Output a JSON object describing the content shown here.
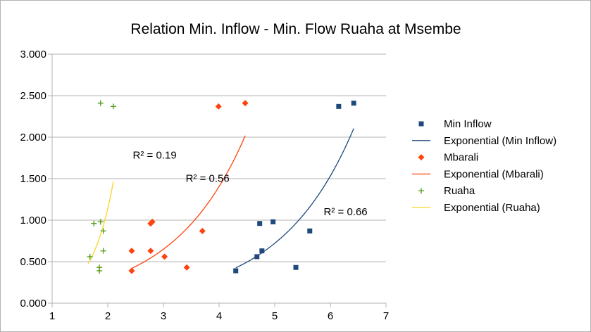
{
  "chart_data": {
    "type": "scatter",
    "title": "Relation Min. Inflow - Min. Flow Ruaha at Msembe",
    "xlabel": "",
    "ylabel": "",
    "xlim": [
      1,
      7
    ],
    "ylim": [
      0,
      3
    ],
    "x_ticks": [
      1,
      2,
      3,
      4,
      5,
      6,
      7
    ],
    "y_ticks": [
      0,
      0.5,
      1,
      1.5,
      2,
      2.5,
      3
    ],
    "x_tick_labels": [
      "1",
      "2",
      "3",
      "4",
      "5",
      "6",
      "7"
    ],
    "y_tick_labels": [
      "0.000",
      "0.500",
      "1.000",
      "1.500",
      "2.000",
      "2.500",
      "3.000"
    ],
    "grid": "horizontal",
    "legend_position": "right",
    "series": [
      {
        "name": "Min Inflow",
        "marker": "square",
        "color": "#1f497d",
        "points": [
          [
            4.3,
            0.39
          ],
          [
            4.68,
            0.56
          ],
          [
            4.77,
            0.63
          ],
          [
            4.73,
            0.96
          ],
          [
            4.97,
            0.98
          ],
          [
            5.38,
            0.43
          ],
          [
            5.63,
            0.87
          ],
          [
            6.15,
            2.37
          ],
          [
            6.42,
            2.41
          ]
        ]
      },
      {
        "name": "Exponential (Min Inflow)",
        "type": "trendline",
        "color": "#1f497d",
        "x_range": [
          4.3,
          6.42
        ],
        "a": 0.0166,
        "b": 0.7543
      },
      {
        "name": "Mbarali",
        "marker": "diamond",
        "color": "#ff420e",
        "points": [
          [
            2.43,
            0.39
          ],
          [
            2.43,
            0.63
          ],
          [
            2.77,
            0.63
          ],
          [
            2.77,
            0.96
          ],
          [
            2.8,
            0.98
          ],
          [
            3.02,
            0.56
          ],
          [
            3.42,
            0.43
          ],
          [
            3.7,
            0.87
          ],
          [
            3.99,
            2.37
          ],
          [
            4.47,
            2.41
          ]
        ]
      },
      {
        "name": "Exponential (Mbarali)",
        "type": "trendline",
        "color": "#ff420e",
        "x_range": [
          2.43,
          4.47
        ],
        "a": 0.0644,
        "b": 0.7706
      },
      {
        "name": "Ruaha",
        "marker": "plus",
        "color": "#579d1c",
        "points": [
          [
            1.68,
            0.56
          ],
          [
            1.85,
            0.39
          ],
          [
            1.85,
            0.43
          ],
          [
            1.75,
            0.96
          ],
          [
            1.87,
            0.98
          ],
          [
            1.92,
            0.63
          ],
          [
            1.92,
            0.87
          ],
          [
            1.87,
            2.41
          ],
          [
            2.1,
            2.37
          ]
        ]
      },
      {
        "name": "Exponential (Ruaha)",
        "type": "trendline",
        "color": "#ffd320",
        "x_range": [
          1.65,
          2.1
        ],
        "a": 0.00786,
        "b": 2.4889
      }
    ],
    "annotations": [
      {
        "text": "R² = 0.19",
        "x": 2.45,
        "y": 1.74
      },
      {
        "text": "R² = 0.56",
        "x": 3.4,
        "y": 1.46
      },
      {
        "text": "R² = 0.66",
        "x": 5.88,
        "y": 1.06
      }
    ]
  }
}
